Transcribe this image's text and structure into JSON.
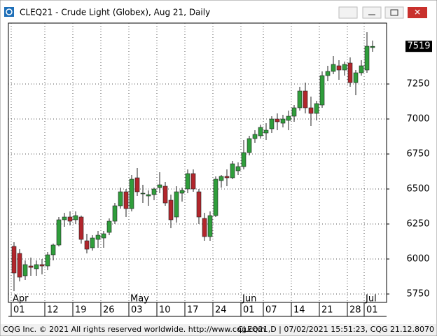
{
  "chart_data": {
    "type": "candlestick",
    "title": "CLEQ21 - Crude Light (Globex), Aug 21, Daily",
    "categories": [
      "01",
      null,
      null,
      null,
      null,
      null,
      "12",
      null,
      null,
      null,
      null,
      "19",
      null,
      null,
      null,
      null,
      "26",
      null,
      null,
      null,
      null,
      "03",
      null,
      null,
      null,
      null,
      "10",
      null,
      null,
      null,
      null,
      "17",
      null,
      null,
      null,
      null,
      "24",
      null,
      null,
      null,
      null,
      "01",
      null,
      null,
      null,
      "07",
      null,
      null,
      null,
      null,
      "14",
      null,
      null,
      null,
      null,
      "21",
      null,
      null,
      null,
      null,
      "28",
      null,
      null,
      "01",
      null
    ],
    "months": [
      "Apr",
      null,
      null,
      null,
      null,
      null,
      null,
      null,
      null,
      null,
      null,
      null,
      null,
      null,
      null,
      null,
      null,
      null,
      null,
      null,
      null,
      "May",
      null,
      null,
      null,
      null,
      null,
      null,
      null,
      null,
      null,
      null,
      null,
      null,
      null,
      null,
      null,
      null,
      null,
      null,
      null,
      "Jun",
      null,
      null,
      null,
      null,
      null,
      null,
      null,
      null,
      null,
      null,
      null,
      null,
      null,
      null,
      null,
      null,
      null,
      null,
      null,
      null,
      null,
      "Jul",
      null
    ],
    "open": [
      6090,
      6040,
      5880,
      5950,
      5930,
      5960,
      5950,
      6030,
      6100,
      6280,
      6300,
      6280,
      6300,
      6130,
      6080,
      6140,
      6150,
      6190,
      6270,
      6380,
      6480,
      6360,
      6580,
      6470,
      6450,
      6460,
      6510,
      6520,
      6420,
      6300,
      6470,
      6500,
      6610,
      6480,
      6290,
      6160,
      6310,
      6560,
      6590,
      6580,
      6630,
      6660,
      6760,
      6860,
      6880,
      6900,
      6930,
      7000,
      6970,
      6990,
      7020,
      7080,
      7200,
      7080,
      7040,
      7100,
      7310,
      7340,
      7380,
      7350,
      7400,
      7260,
      7330,
      7350,
      7510
    ],
    "high": [
      6120,
      6070,
      5990,
      6010,
      5990,
      6000,
      6050,
      6110,
      6300,
      6330,
      6340,
      6340,
      6310,
      6180,
      6170,
      6200,
      6200,
      6290,
      6400,
      6510,
      6500,
      6600,
      6650,
      6530,
      6490,
      6510,
      6620,
      6550,
      6460,
      6520,
      6510,
      6640,
      6640,
      6500,
      6330,
      6340,
      6590,
      6600,
      6640,
      6700,
      6690,
      6850,
      6880,
      6920,
      6960,
      6970,
      7020,
      7040,
      7030,
      7060,
      7100,
      7230,
      7260,
      7160,
      7130,
      7340,
      7380,
      7450,
      7420,
      7410,
      7440,
      7350,
      7420,
      7620,
      7560
    ],
    "low": [
      5770,
      5840,
      5850,
      5880,
      5880,
      5890,
      5920,
      5990,
      6090,
      6230,
      6240,
      6250,
      6110,
      6040,
      6060,
      6080,
      6080,
      6170,
      6250,
      6360,
      6300,
      6340,
      6450,
      6400,
      6380,
      6420,
      6470,
      6380,
      6220,
      6260,
      6410,
      6470,
      6480,
      6250,
      6130,
      6130,
      6300,
      6510,
      6520,
      6570,
      6600,
      6640,
      6740,
      6830,
      6860,
      6850,
      6900,
      6920,
      6940,
      6920,
      6980,
      7060,
      7040,
      6950,
      6990,
      7080,
      7270,
      7320,
      7280,
      7310,
      7230,
      7170,
      7310,
      7330,
      7480
    ],
    "close": [
      5900,
      5870,
      5960,
      5940,
      5960,
      5950,
      6030,
      6100,
      6280,
      6300,
      6270,
      6310,
      6140,
      6070,
      6150,
      6170,
      6180,
      6270,
      6380,
      6480,
      6360,
      6570,
      6480,
      6470,
      6460,
      6500,
      6530,
      6400,
      6280,
      6480,
      6490,
      6610,
      6500,
      6300,
      6160,
      6310,
      6570,
      6590,
      6580,
      6680,
      6660,
      6760,
      6860,
      6890,
      6940,
      6920,
      7000,
      6980,
      7000,
      7020,
      7080,
      7200,
      7080,
      7040,
      7110,
      7310,
      7340,
      7390,
      7350,
      7390,
      7260,
      7330,
      7380,
      7520,
      7519
    ],
    "up_color": "#2f9e3b",
    "down_color": "#b2262c",
    "ylim": [
      5690,
      7685
    ],
    "yticks": [
      5750,
      6000,
      6250,
      6500,
      6750,
      7000,
      7250
    ],
    "grid": true
  },
  "footer": {
    "left": "CQG Inc. © 2021 All rights reserved worldwide. http://www.cqg.com",
    "right": "CLEQ21,D | 07/02/2021 15:51:23, CQG 21.12.8070"
  }
}
